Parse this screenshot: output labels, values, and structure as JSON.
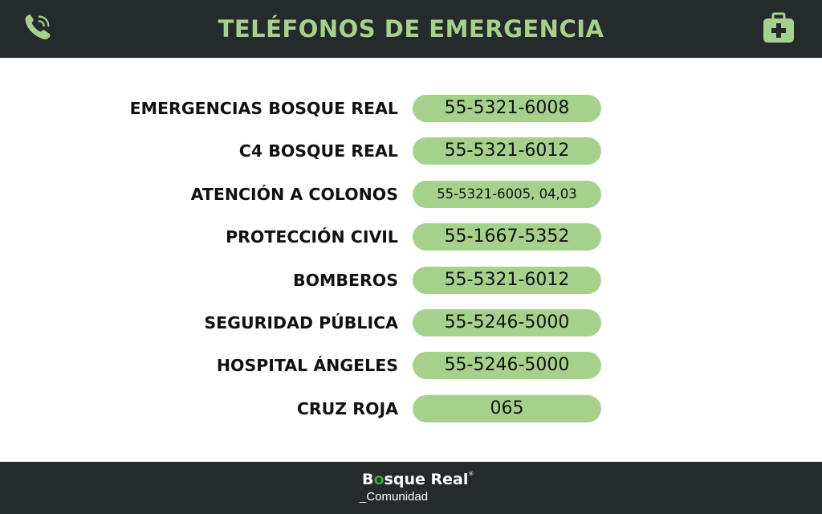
{
  "header": {
    "title": "TELÉFONOS DE EMERGENCIA",
    "left_icon": "phone-icon",
    "right_icon": "first-aid-kit-icon"
  },
  "contacts": [
    {
      "label": "EMERGENCIAS  BOSQUE REAL",
      "phone": "55-5321-6008"
    },
    {
      "label": "C4 BOSQUE REAL",
      "phone": "55-5321-6012"
    },
    {
      "label": "ATENCIÓN A COLONOS",
      "phone": "55-5321-6005, 04,03"
    },
    {
      "label": "PROTECCIÓN CIVIL",
      "phone": "55-1667-5352"
    },
    {
      "label": "BOMBEROS",
      "phone": "55-5321-6012"
    },
    {
      "label": "SEGURIDAD PÚBLICA",
      "phone": "55-5246-5000"
    },
    {
      "label": "HOSPITAL ÁNGELES",
      "phone": "55-5246-5000"
    },
    {
      "label": "CRUZ ROJA",
      "phone": "065"
    }
  ],
  "footer": {
    "brand_b": "B",
    "brand_o": "o",
    "brand_rest": "sque Real",
    "brand_mark": "®",
    "subtitle": "_Comunidad"
  },
  "colors": {
    "bar_background": "#252a2d",
    "accent_green": "#a6d18d",
    "brand_green": "#3fa535",
    "text": "#111111"
  }
}
